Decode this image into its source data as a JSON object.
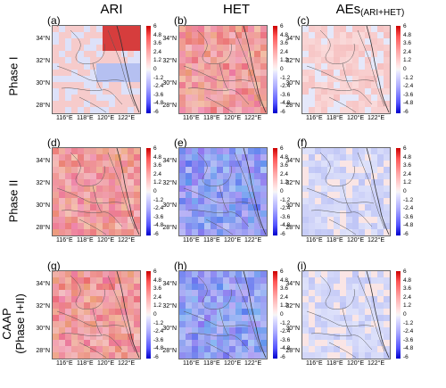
{
  "columns": [
    {
      "title": "ARI",
      "sub": ""
    },
    {
      "title": "HET",
      "sub": ""
    },
    {
      "title": "AEs",
      "sub": "(ARI+HET)"
    }
  ],
  "rows": [
    {
      "title": "Phase I"
    },
    {
      "title": "Phase II"
    },
    {
      "title": "CAAP",
      "title2": "(Phase I+II)"
    }
  ],
  "panel_labels": [
    "(a)",
    "(b)",
    "(c)",
    "(d)",
    "(e)",
    "(f)",
    "(g)",
    "(h)",
    "(i)"
  ],
  "lat_labels": [
    "34°N",
    "32°N",
    "30°N",
    "28°N"
  ],
  "lon_labels": [
    "116°E",
    "118°E",
    "120°E",
    "122°E"
  ],
  "colorbar_ticks": [
    "6",
    "4.8",
    "3.6",
    "2.4",
    "1.2",
    "0",
    "-1.2",
    "-2.4",
    "-3.6",
    "-4.8",
    "-6"
  ],
  "panel_tone": {
    "(a)": "mixed-red-northeast",
    "(b)": "red",
    "(c)": "light-red",
    "(d)": "red",
    "(e)": "blue",
    "(f)": "light-blue",
    "(g)": "red",
    "(h)": "blue",
    "(i)": "light-blue"
  },
  "colors": {
    "positive": "#cc0000",
    "negative": "#0000cc",
    "neutral": "#f6f6f6",
    "boundary": "#555555"
  }
}
